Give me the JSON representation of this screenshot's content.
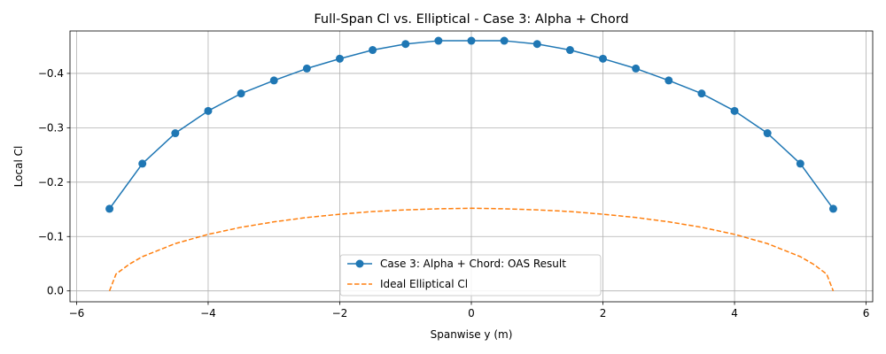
{
  "chart_data": {
    "type": "line",
    "title": "Full-Span Cl vs. Elliptical - Case 3: Alpha + Chord",
    "xlabel": "Spanwise y (m)",
    "ylabel": "Local Cl",
    "xlim": [
      -6.1,
      6.1
    ],
    "ylim": [
      0.02,
      -0.478
    ],
    "y_inverted": true,
    "grid": true,
    "legend_position": "bottom-center",
    "x_ticks": [
      -6,
      -4,
      -2,
      0,
      2,
      4,
      6
    ],
    "x_tick_labels": [
      "−6",
      "−4",
      "−2",
      "0",
      "2",
      "4",
      "6"
    ],
    "y_ticks": [
      0.0,
      -0.1,
      -0.2,
      -0.3,
      -0.4
    ],
    "y_tick_labels": [
      "0.0",
      "−0.1",
      "−0.2",
      "−0.3",
      "−0.4"
    ],
    "series": [
      {
        "name": "Case 3: Alpha + Chord: OAS Result",
        "color": "#1f77b4",
        "style": "solid",
        "marker": "circle",
        "x": [
          -5.5,
          -5.0,
          -4.5,
          -4.0,
          -3.5,
          -3.0,
          -2.5,
          -2.0,
          -1.5,
          -1.0,
          -0.5,
          0.0,
          0.5,
          1.0,
          1.5,
          2.0,
          2.5,
          3.0,
          3.5,
          4.0,
          4.5,
          5.0,
          5.5
        ],
        "y": [
          -0.151,
          -0.234,
          -0.29,
          -0.331,
          -0.363,
          -0.387,
          -0.409,
          -0.427,
          -0.443,
          -0.454,
          -0.46,
          -0.46,
          -0.46,
          -0.454,
          -0.443,
          -0.427,
          -0.409,
          -0.387,
          -0.363,
          -0.331,
          -0.29,
          -0.234,
          -0.151
        ]
      },
      {
        "name": "Ideal Elliptical Cl",
        "color": "#ff7f0e",
        "style": "dashed",
        "marker": "none",
        "x": [
          -5.5,
          -5.4,
          -5.2,
          -5.0,
          -4.5,
          -4.0,
          -3.5,
          -3.0,
          -2.5,
          -2.0,
          -1.5,
          -1.0,
          -0.5,
          0.0,
          0.5,
          1.0,
          1.5,
          2.0,
          2.5,
          3.0,
          3.5,
          4.0,
          4.5,
          5.0,
          5.2,
          5.4,
          5.5
        ],
        "y": [
          0.0,
          -0.031,
          -0.049,
          -0.063,
          -0.087,
          -0.104,
          -0.117,
          -0.127,
          -0.135,
          -0.141,
          -0.146,
          -0.149,
          -0.151,
          -0.152,
          -0.151,
          -0.149,
          -0.146,
          -0.141,
          -0.135,
          -0.127,
          -0.117,
          -0.104,
          -0.087,
          -0.063,
          -0.049,
          -0.031,
          0.0
        ]
      }
    ]
  }
}
